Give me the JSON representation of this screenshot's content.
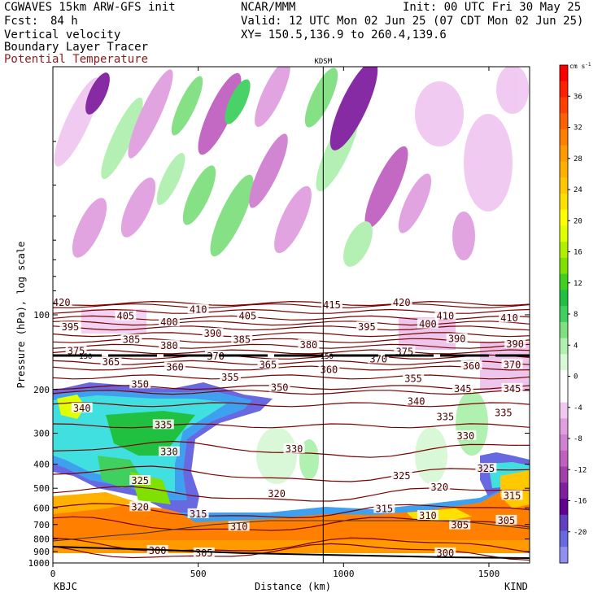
{
  "header": {
    "model": "CGWAVES 15km ARW-GFS init",
    "center": "NCAR/MMM",
    "init": "Init: 00 UTC Fri 30 May 25",
    "fcst_label": "Fcst:",
    "fcst_value": "84 h",
    "valid": "Valid: 12 UTC Mon 02 Jun 25 (07 CDT Mon 02 Jun 25)",
    "field1": "Vertical velocity",
    "xy": "XY= 150.5,136.9 to 260.4,139.6",
    "field2": "Boundary Layer Tracer",
    "field3": "Potential Temperature",
    "field3_color": "#8b1a1a"
  },
  "chart_data": {
    "type": "heatmap",
    "title": "",
    "xlabel": "Distance (km)",
    "ylabel": "Pressure (hPa), log scale",
    "x_ticks": [
      "0",
      "500",
      "1000",
      "1500"
    ],
    "x_tick_values": [
      0,
      500,
      1000,
      1500
    ],
    "xlim": [
      0,
      1640
    ],
    "y_ticks": [
      "100",
      "200",
      "300",
      "400",
      "500",
      "600",
      "700",
      "800",
      "900",
      "1000"
    ],
    "y_tick_values": [
      100,
      200,
      300,
      400,
      500,
      600,
      700,
      800,
      900,
      1000
    ],
    "ylim": [
      1000,
      10
    ],
    "y_scale": "log",
    "left_station": "KBJC",
    "right_station": "KIND",
    "marker_station": "KDSM",
    "marker_x": 930,
    "tropopause_label": "150",
    "colorbar": {
      "units": "cm s",
      "units_exp": "-1",
      "tick_labels": [
        "36",
        "32",
        "28",
        "24",
        "20",
        "16",
        "12",
        "8",
        "4",
        "0",
        "-4",
        "-8",
        "-12",
        "-16",
        "-20"
      ],
      "tick_values": [
        36,
        32,
        28,
        24,
        20,
        16,
        12,
        8,
        4,
        0,
        -4,
        -8,
        -12,
        -16,
        -20
      ],
      "colors": [
        "#ff0000",
        "#ff2000",
        "#ff4000",
        "#ff6000",
        "#ff8000",
        "#ff9a00",
        "#ffb000",
        "#ffc800",
        "#ffe000",
        "#ffff00",
        "#e0ff00",
        "#b0f000",
        "#80e000",
        "#40d020",
        "#20c040",
        "#40d060",
        "#80e080",
        "#b0f0b0",
        "#d8f8d8",
        "#ffffff",
        "#ffffff",
        "#f0c8f0",
        "#e0a0e0",
        "#d080d0",
        "#c060c0",
        "#a040a8",
        "#8020a0",
        "#600090",
        "#6040c0",
        "#6868e0",
        "#9090f0"
      ]
    },
    "theta_contours": [
      {
        "label": "420",
        "p": 90
      },
      {
        "label": "415",
        "p": 92
      },
      {
        "label": "410",
        "p": 97
      },
      {
        "label": "405",
        "p": 103
      },
      {
        "label": "400",
        "p": 108
      },
      {
        "label": "395",
        "p": 113
      },
      {
        "label": "390",
        "p": 120
      },
      {
        "label": "385",
        "p": 127
      },
      {
        "label": "380",
        "p": 134
      },
      {
        "label": "375",
        "p": 141
      },
      {
        "label": "370",
        "p": 148
      },
      {
        "label": "365",
        "p": 156
      },
      {
        "label": "360",
        "p": 164
      },
      {
        "label": "355",
        "p": 178
      },
      {
        "label": "350",
        "p": 196
      },
      {
        "label": "345",
        "p": 205
      },
      {
        "label": "340",
        "p": 230
      },
      {
        "label": "335",
        "p": 280
      },
      {
        "label": "330",
        "p": 350
      },
      {
        "label": "325",
        "p": 440
      },
      {
        "label": "320",
        "p": 530
      },
      {
        "label": "315",
        "p": 620
      },
      {
        "label": "310",
        "p": 700
      },
      {
        "label": "305",
        "p": 850
      },
      {
        "label": "300",
        "p": 900
      }
    ],
    "theta_labels": [
      {
        "text": "420",
        "x": 30,
        "p": 90
      },
      {
        "text": "410",
        "x": 500,
        "p": 96
      },
      {
        "text": "415",
        "x": 960,
        "p": 92
      },
      {
        "text": "420",
        "x": 1200,
        "p": 90
      },
      {
        "text": "395",
        "x": 60,
        "p": 113
      },
      {
        "text": "405",
        "x": 250,
        "p": 102
      },
      {
        "text": "400",
        "x": 400,
        "p": 108
      },
      {
        "text": "405",
        "x": 670,
        "p": 102
      },
      {
        "text": "395",
        "x": 1080,
        "p": 113
      },
      {
        "text": "400",
        "x": 1290,
        "p": 110
      },
      {
        "text": "410",
        "x": 1350,
        "p": 102
      },
      {
        "text": "410",
        "x": 1570,
        "p": 104
      },
      {
        "text": "385",
        "x": 270,
        "p": 127
      },
      {
        "text": "390",
        "x": 550,
        "p": 120
      },
      {
        "text": "380",
        "x": 400,
        "p": 134
      },
      {
        "text": "385",
        "x": 650,
        "p": 127
      },
      {
        "text": "380",
        "x": 880,
        "p": 133
      },
      {
        "text": "390",
        "x": 1390,
        "p": 126
      },
      {
        "text": "390",
        "x": 1590,
        "p": 132
      },
      {
        "text": "375",
        "x": 80,
        "p": 141
      },
      {
        "text": "370",
        "x": 560,
        "p": 148
      },
      {
        "text": "375",
        "x": 1210,
        "p": 142
      },
      {
        "text": "365",
        "x": 200,
        "p": 156
      },
      {
        "text": "360",
        "x": 420,
        "p": 164
      },
      {
        "text": "365",
        "x": 740,
        "p": 160
      },
      {
        "text": "360",
        "x": 950,
        "p": 168
      },
      {
        "text": "370",
        "x": 1120,
        "p": 152
      },
      {
        "text": "360",
        "x": 1440,
        "p": 162
      },
      {
        "text": "370",
        "x": 1580,
        "p": 160
      },
      {
        "text": "355",
        "x": 610,
        "p": 180
      },
      {
        "text": "355",
        "x": 1240,
        "p": 182
      },
      {
        "text": "350",
        "x": 300,
        "p": 192
      },
      {
        "text": "350",
        "x": 780,
        "p": 198
      },
      {
        "text": "345",
        "x": 1410,
        "p": 200
      },
      {
        "text": "345",
        "x": 1580,
        "p": 200
      },
      {
        "text": "340",
        "x": 100,
        "p": 240
      },
      {
        "text": "340",
        "x": 1250,
        "p": 225
      },
      {
        "text": "335",
        "x": 380,
        "p": 280
      },
      {
        "text": "335",
        "x": 1350,
        "p": 260
      },
      {
        "text": "335",
        "x": 1550,
        "p": 250
      },
      {
        "text": "330",
        "x": 400,
        "p": 360
      },
      {
        "text": "330",
        "x": 830,
        "p": 350
      },
      {
        "text": "330",
        "x": 1420,
        "p": 310
      },
      {
        "text": "325",
        "x": 300,
        "p": 470
      },
      {
        "text": "325",
        "x": 1200,
        "p": 450
      },
      {
        "text": "325",
        "x": 1490,
        "p": 420
      },
      {
        "text": "320",
        "x": 300,
        "p": 600
      },
      {
        "text": "320",
        "x": 770,
        "p": 530
      },
      {
        "text": "320",
        "x": 1330,
        "p": 500
      },
      {
        "text": "315",
        "x": 500,
        "p": 640
      },
      {
        "text": "315",
        "x": 1140,
        "p": 610
      },
      {
        "text": "315",
        "x": 1580,
        "p": 540
      },
      {
        "text": "310",
        "x": 640,
        "p": 720
      },
      {
        "text": "310",
        "x": 1290,
        "p": 650
      },
      {
        "text": "305",
        "x": 1400,
        "p": 710
      },
      {
        "text": "305",
        "x": 1560,
        "p": 680
      },
      {
        "text": "300",
        "x": 360,
        "p": 900
      },
      {
        "text": "305",
        "x": 520,
        "p": 920
      },
      {
        "text": "300",
        "x": 1350,
        "p": 920
      }
    ]
  }
}
